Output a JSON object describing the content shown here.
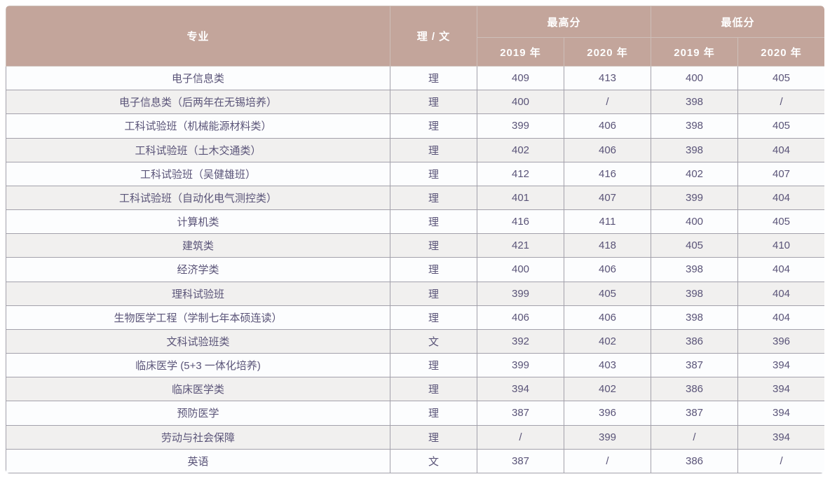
{
  "table": {
    "columns": {
      "major": "专业",
      "track": "理 / 文",
      "max_group": "最高分",
      "min_group": "最低分",
      "year_2019": "2019 年",
      "year_2020": "2020 年"
    },
    "rows": [
      {
        "major": "电子信息类",
        "track": "理",
        "max_2019": "409",
        "max_2020": "413",
        "min_2019": "400",
        "min_2020": "405"
      },
      {
        "major": "电子信息类（后两年在无锡培养）",
        "track": "理",
        "max_2019": "400",
        "max_2020": "/",
        "min_2019": "398",
        "min_2020": "/"
      },
      {
        "major": "工科试验班（机械能源材料类）",
        "track": "理",
        "max_2019": "399",
        "max_2020": "406",
        "min_2019": "398",
        "min_2020": "405"
      },
      {
        "major": "工科试验班（土木交通类）",
        "track": "理",
        "max_2019": "402",
        "max_2020": "406",
        "min_2019": "398",
        "min_2020": "404"
      },
      {
        "major": "工科试验班（吴健雄班）",
        "track": "理",
        "max_2019": "412",
        "max_2020": "416",
        "min_2019": "402",
        "min_2020": "407"
      },
      {
        "major": "工科试验班（自动化电气测控类）",
        "track": "理",
        "max_2019": "401",
        "max_2020": "407",
        "min_2019": "399",
        "min_2020": "404"
      },
      {
        "major": "计算机类",
        "track": "理",
        "max_2019": "416",
        "max_2020": "411",
        "min_2019": "400",
        "min_2020": "405"
      },
      {
        "major": "建筑类",
        "track": "理",
        "max_2019": "421",
        "max_2020": "418",
        "min_2019": "405",
        "min_2020": "410"
      },
      {
        "major": "经济学类",
        "track": "理",
        "max_2019": "400",
        "max_2020": "406",
        "min_2019": "398",
        "min_2020": "404"
      },
      {
        "major": "理科试验班",
        "track": "理",
        "max_2019": "399",
        "max_2020": "405",
        "min_2019": "398",
        "min_2020": "404"
      },
      {
        "major": "生物医学工程（学制七年本硕连读）",
        "track": "理",
        "max_2019": "406",
        "max_2020": "406",
        "min_2019": "398",
        "min_2020": "404"
      },
      {
        "major": "文科试验班类",
        "track": "文",
        "max_2019": "392",
        "max_2020": "402",
        "min_2019": "386",
        "min_2020": "396"
      },
      {
        "major": "临床医学 (5+3 一体化培养)",
        "track": "理",
        "max_2019": "399",
        "max_2020": "403",
        "min_2019": "387",
        "min_2020": "394"
      },
      {
        "major": "临床医学类",
        "track": "理",
        "max_2019": "394",
        "max_2020": "402",
        "min_2019": "386",
        "min_2020": "394"
      },
      {
        "major": "预防医学",
        "track": "理",
        "max_2019": "387",
        "max_2020": "396",
        "min_2019": "387",
        "min_2020": "394"
      },
      {
        "major": "劳动与社会保障",
        "track": "理",
        "max_2019": "/",
        "max_2020": "399",
        "min_2019": "/",
        "min_2020": "394"
      },
      {
        "major": "英语",
        "track": "文",
        "max_2019": "387",
        "max_2020": "/",
        "min_2019": "386",
        "min_2020": "/"
      }
    ]
  },
  "colors": {
    "header_bg": "#c3a59b",
    "header_text": "#ffffff",
    "row_bg": "#fcfdfe",
    "row_alt_bg": "#f1f0ef",
    "body_text": "#5a5478",
    "border": "#a3a1ab"
  }
}
